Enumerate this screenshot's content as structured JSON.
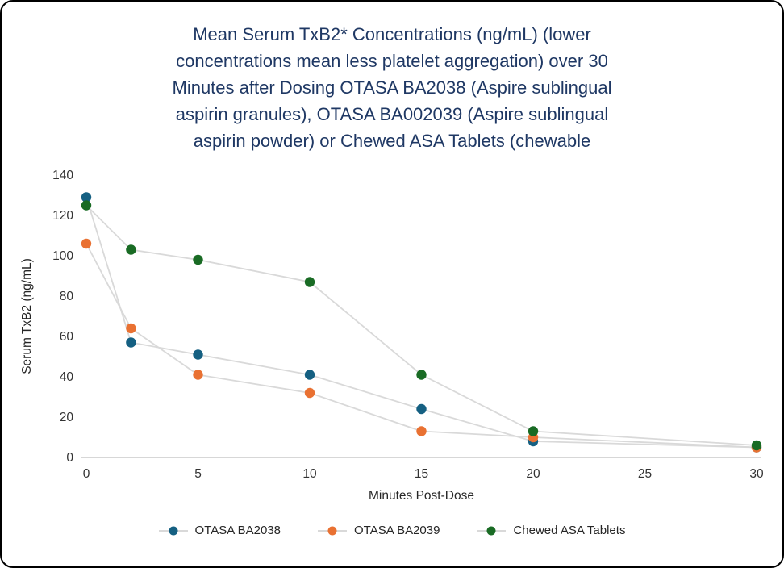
{
  "chart_data": {
    "type": "line",
    "title": "Mean Serum TxB2* Concentrations (ng/mL) (lower concentrations mean less platelet aggregation) over 30 Minutes after Dosing OTASA BA2038 (Aspire sublingual aspirin granules), OTASA BA002039 (Aspire sublingual aspirin powder) or Chewed ASA Tablets (chewable",
    "title_lines": [
      "Mean Serum TxB2* Concentrations (ng/mL) (lower",
      "concentrations mean less platelet aggregation) over 30",
      "Minutes after Dosing OTASA BA2038 (Aspire sublingual",
      "aspirin granules), OTASA BA002039 (Aspire sublingual",
      "aspirin powder) or Chewed ASA Tablets (chewable"
    ],
    "xlabel": "Minutes Post-Dose",
    "ylabel": "Serum TxB2 (ng/mL)",
    "x": [
      0,
      2,
      5,
      10,
      15,
      20,
      30
    ],
    "series": [
      {
        "name": "OTASA BA2038",
        "color": "#156082",
        "values": [
          129,
          57,
          51,
          41,
          24,
          8,
          5
        ]
      },
      {
        "name": "OTASA BA2039",
        "color": "#E97132",
        "values": [
          106,
          64,
          41,
          32,
          13,
          10,
          5
        ]
      },
      {
        "name": "Chewed ASA Tablets",
        "color": "#196B24",
        "values": [
          125,
          103,
          98,
          87,
          41,
          13,
          6
        ]
      }
    ],
    "xlim": [
      0,
      30
    ],
    "ylim": [
      0,
      140
    ],
    "xticks": [
      0,
      5,
      10,
      15,
      20,
      25,
      30
    ],
    "yticks": [
      0,
      20,
      40,
      60,
      80,
      100,
      120,
      140
    ],
    "grid": false,
    "legend_position": "bottom",
    "marker": "circle",
    "connector_line_color": "#D9D9D9",
    "axis_line_color": "#BFBFBF",
    "title_color": "#1F3864"
  }
}
